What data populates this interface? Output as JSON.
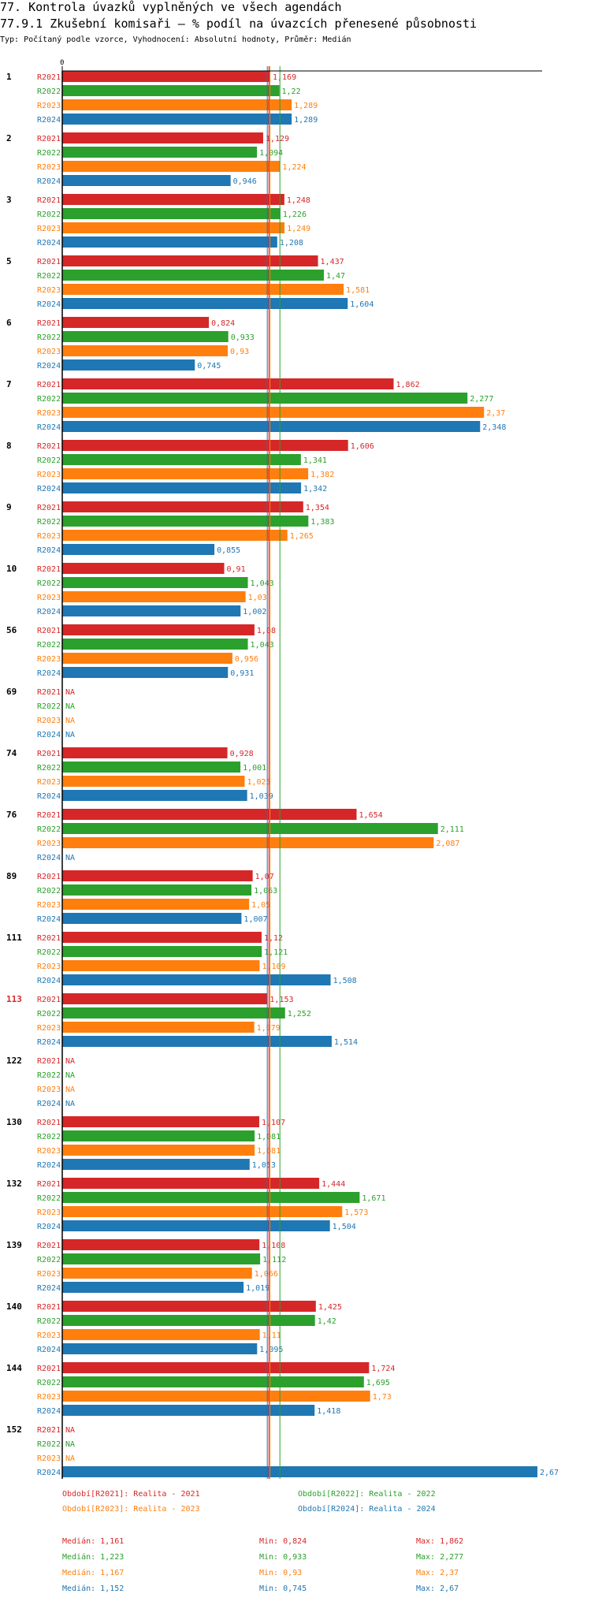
{
  "header": {
    "title": "77. Kontrola úvazků vyplněných ve všech agendách",
    "subtitle": "77.9.1 Zkušební komisaři – % podíl na úvazcích přenesené působnosti",
    "info": "Typ: Počítaný podle vzorce, Vyhodnocení: Absolutní hodnoty, Průměr: Medián"
  },
  "colors": {
    "R2021": "#d62728",
    "R2022": "#2ca02c",
    "R2023": "#ff7f0e",
    "R2024": "#1f77b4",
    "highlight_group": "#d62728"
  },
  "chart_data": {
    "type": "bar",
    "orientation": "horizontal",
    "axis_zero_label": "0",
    "xlim": [
      0,
      2.67
    ],
    "na_label": "NA",
    "highlighted_group": "113",
    "series_names": [
      "R2021",
      "R2022",
      "R2023",
      "R2024"
    ],
    "groups": [
      {
        "label": "1",
        "values": [
          1.169,
          1.22,
          1.289,
          1.289
        ],
        "labels": [
          "1,169",
          "1,22",
          "1,289",
          "1,289"
        ]
      },
      {
        "label": "2",
        "values": [
          1.129,
          1.094,
          1.224,
          0.946
        ],
        "labels": [
          "1,129",
          "1,094",
          "1,224",
          "0,946"
        ]
      },
      {
        "label": "3",
        "values": [
          1.248,
          1.226,
          1.249,
          1.208
        ],
        "labels": [
          "1,248",
          "1,226",
          "1,249",
          "1,208"
        ]
      },
      {
        "label": "5",
        "values": [
          1.437,
          1.47,
          1.581,
          1.604
        ],
        "labels": [
          "1,437",
          "1,47",
          "1,581",
          "1,604"
        ]
      },
      {
        "label": "6",
        "values": [
          0.824,
          0.933,
          0.93,
          0.745
        ],
        "labels": [
          "0,824",
          "0,933",
          "0,93",
          "0,745"
        ]
      },
      {
        "label": "7",
        "values": [
          1.862,
          2.277,
          2.37,
          2.348
        ],
        "labels": [
          "1,862",
          "2,277",
          "2,37",
          "2,348"
        ]
      },
      {
        "label": "8",
        "values": [
          1.606,
          1.341,
          1.382,
          1.342
        ],
        "labels": [
          "1,606",
          "1,341",
          "1,382",
          "1,342"
        ]
      },
      {
        "label": "9",
        "values": [
          1.354,
          1.383,
          1.265,
          0.855
        ],
        "labels": [
          "1,354",
          "1,383",
          "1,265",
          "0,855"
        ]
      },
      {
        "label": "10",
        "values": [
          0.91,
          1.043,
          1.03,
          1.002
        ],
        "labels": [
          "0,91",
          "1,043",
          "1,03",
          "1,002"
        ]
      },
      {
        "label": "56",
        "values": [
          1.08,
          1.043,
          0.956,
          0.931
        ],
        "labels": [
          "1,08",
          "1,043",
          "0,956",
          "0,931"
        ]
      },
      {
        "label": "69",
        "values": [
          null,
          null,
          null,
          null
        ],
        "labels": [
          "NA",
          "NA",
          "NA",
          "NA"
        ]
      },
      {
        "label": "74",
        "values": [
          0.928,
          1.001,
          1.025,
          1.039
        ],
        "labels": [
          "0,928",
          "1,001",
          "1,025",
          "1,039"
        ]
      },
      {
        "label": "76",
        "values": [
          1.654,
          2.111,
          2.087,
          null
        ],
        "labels": [
          "1,654",
          "2,111",
          "2,087",
          "NA"
        ]
      },
      {
        "label": "89",
        "values": [
          1.07,
          1.063,
          1.05,
          1.007
        ],
        "labels": [
          "1,07",
          "1,063",
          "1,05",
          "1,007"
        ]
      },
      {
        "label": "111",
        "values": [
          1.12,
          1.121,
          1.109,
          1.508
        ],
        "labels": [
          "1,12",
          "1,121",
          "1,109",
          "1,508"
        ]
      },
      {
        "label": "113",
        "values": [
          1.153,
          1.252,
          1.079,
          1.514
        ],
        "labels": [
          "1,153",
          "1,252",
          "1,079",
          "1,514"
        ]
      },
      {
        "label": "122",
        "values": [
          null,
          null,
          null,
          null
        ],
        "labels": [
          "NA",
          "NA",
          "NA",
          "NA"
        ]
      },
      {
        "label": "130",
        "values": [
          1.107,
          1.081,
          1.081,
          1.053
        ],
        "labels": [
          "1,107",
          "1,081",
          "1,081",
          "1,053"
        ]
      },
      {
        "label": "132",
        "values": [
          1.444,
          1.671,
          1.573,
          1.504
        ],
        "labels": [
          "1,444",
          "1,671",
          "1,573",
          "1,504"
        ]
      },
      {
        "label": "139",
        "values": [
          1.108,
          1.112,
          1.066,
          1.019
        ],
        "labels": [
          "1,108",
          "1,112",
          "1,066",
          "1,019"
        ]
      },
      {
        "label": "140",
        "values": [
          1.425,
          1.42,
          1.11,
          1.095
        ],
        "labels": [
          "1,425",
          "1,42",
          "1,11",
          "1,095"
        ]
      },
      {
        "label": "144",
        "values": [
          1.724,
          1.695,
          1.73,
          1.418
        ],
        "labels": [
          "1,724",
          "1,695",
          "1,73",
          "1,418"
        ]
      },
      {
        "label": "152",
        "values": [
          null,
          null,
          null,
          2.67
        ],
        "labels": [
          "NA",
          "NA",
          "NA",
          "2,67"
        ]
      }
    ],
    "medians": [
      1.161,
      1.223,
      1.167,
      1.152
    ]
  },
  "legend": {
    "entries": [
      "Období[R2021]: Realita - 2021",
      "Období[R2022]: Realita - 2022",
      "Období[R2023]: Realita - 2023",
      "Období[R2024]: Realita - 2024"
    ]
  },
  "stats": [
    {
      "median": "Medián: 1,161",
      "min": "Min: 0,824",
      "max": "Max: 1,862"
    },
    {
      "median": "Medián: 1,223",
      "min": "Min: 0,933",
      "max": "Max: 2,277"
    },
    {
      "median": "Medián: 1,167",
      "min": "Min: 0,93",
      "max": "Max: 2,37"
    },
    {
      "median": "Medián: 1,152",
      "min": "Min: 0,745",
      "max": "Max: 2,67"
    }
  ]
}
